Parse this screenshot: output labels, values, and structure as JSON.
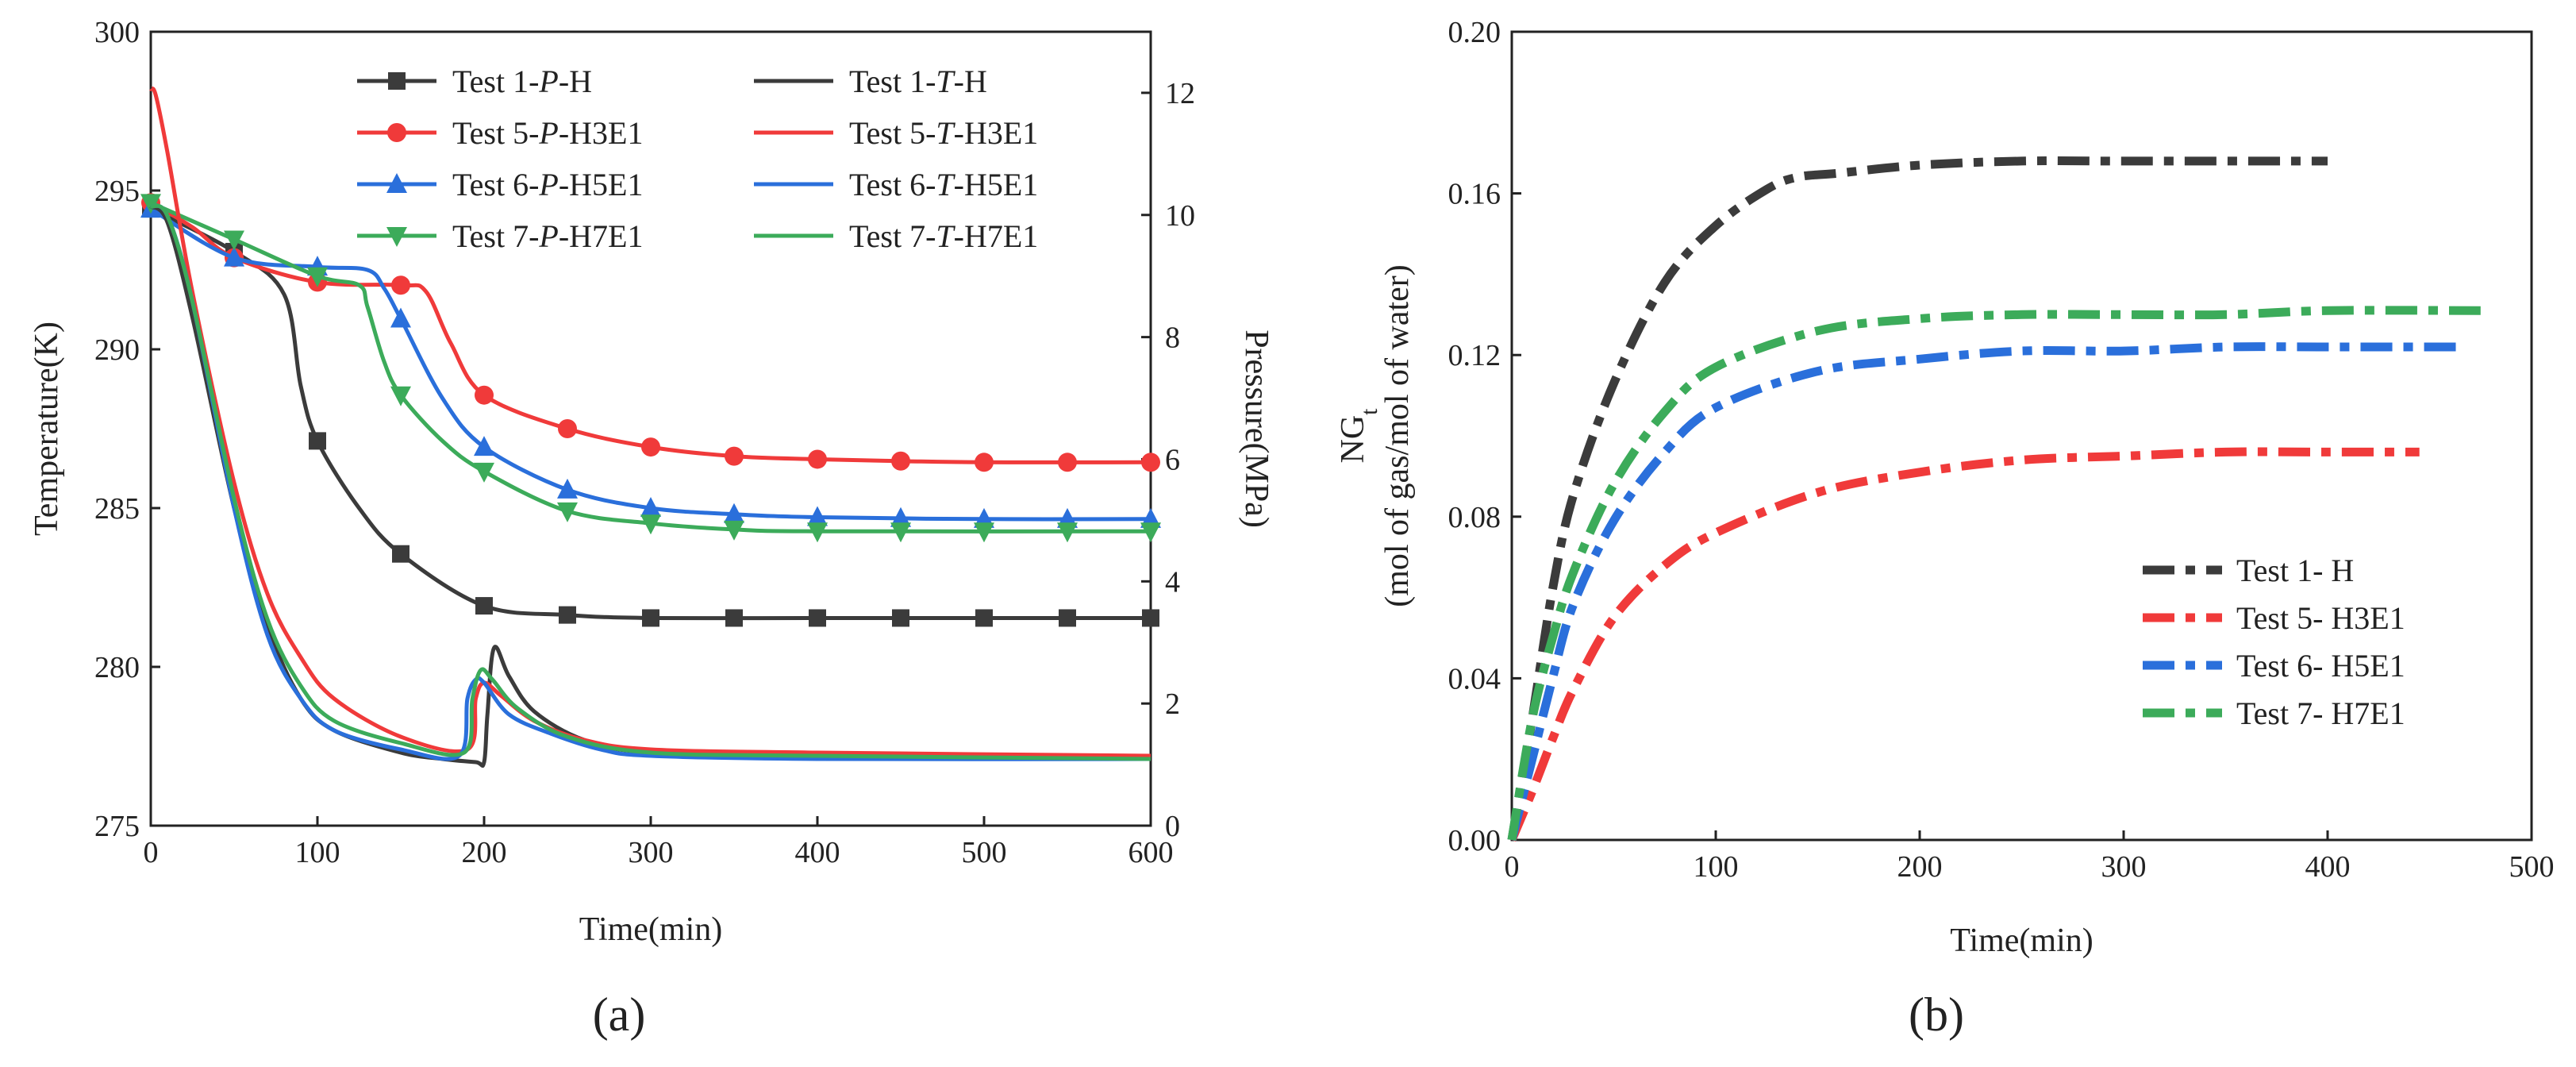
{
  "panel_labels": {
    "a": "(a)",
    "b": "(b)"
  },
  "colors": {
    "H": "#3b3b3b",
    "H3E1": "#f03a3a",
    "H5E1": "#2a6fdb",
    "H7E1": "#3cab5a"
  },
  "chart_data": [
    {
      "id": "a",
      "type": "line",
      "xlabel": "Time(min)",
      "ylabel": "Temperature(K)",
      "y2label": "Pressure(MPa)",
      "xlim": [
        0,
        600
      ],
      "ylim": [
        275,
        300
      ],
      "y2lim": [
        0,
        13
      ],
      "xticks": [
        0,
        100,
        200,
        300,
        400,
        500,
        600
      ],
      "yticks": [
        275,
        280,
        285,
        290,
        295,
        300
      ],
      "y2ticks": [
        0,
        2,
        4,
        6,
        8,
        10,
        12
      ],
      "legend_position": "top-right",
      "series": [
        {
          "name": "Test 1-P-H",
          "label_prefix": "Test 1-",
          "label_var": "P",
          "label_suffix": "-H",
          "color_key": "H",
          "marker": "square",
          "axis": "pressure",
          "x": [
            0,
            50,
            80,
            90,
            100,
            125,
            150,
            200,
            250,
            300,
            400,
            500,
            600
          ],
          "y": [
            10.1,
            9.4,
            8.7,
            7.2,
            6.3,
            5.2,
            4.45,
            3.6,
            3.45,
            3.4,
            3.4,
            3.4,
            3.4
          ],
          "marker_x": [
            0,
            50,
            100,
            150,
            200,
            250,
            300,
            350,
            400,
            450,
            500,
            550,
            600
          ]
        },
        {
          "name": "Test 5-P-H3E1",
          "label_prefix": "Test 5-",
          "label_var": "P",
          "label_suffix": "-H3E1",
          "color_key": "H3E1",
          "marker": "circle",
          "axis": "pressure",
          "x": [
            0,
            25,
            50,
            100,
            150,
            165,
            180,
            200,
            250,
            300,
            350,
            400,
            450,
            500,
            600
          ],
          "y": [
            10.2,
            9.8,
            9.3,
            8.9,
            8.85,
            8.75,
            7.9,
            7.05,
            6.5,
            6.2,
            6.05,
            6.0,
            5.97,
            5.95,
            5.95
          ],
          "marker_x": [
            0,
            50,
            100,
            150,
            200,
            250,
            300,
            350,
            400,
            450,
            500,
            550,
            600
          ]
        },
        {
          "name": "Test 6-P-H5E1",
          "label_prefix": "Test 6-",
          "label_var": "P",
          "label_suffix": "-H5E1",
          "color_key": "H5E1",
          "marker": "triangle-up",
          "axis": "pressure",
          "x": [
            0,
            50,
            100,
            130,
            140,
            150,
            175,
            200,
            250,
            300,
            350,
            400,
            500,
            600
          ],
          "y": [
            10.1,
            9.3,
            9.15,
            9.1,
            8.8,
            8.3,
            7.0,
            6.2,
            5.5,
            5.2,
            5.1,
            5.05,
            5.02,
            5.02
          ],
          "marker_x": [
            0,
            50,
            100,
            150,
            200,
            250,
            300,
            350,
            400,
            450,
            500,
            550,
            600
          ]
        },
        {
          "name": "Test 7-P-H7E1",
          "label_prefix": "Test 7-",
          "label_var": "P",
          "label_suffix": "-H7E1",
          "color_key": "H7E1",
          "marker": "triangle-down",
          "axis": "pressure",
          "x": [
            0,
            50,
            100,
            125,
            130,
            140,
            150,
            175,
            200,
            250,
            300,
            350,
            400,
            600
          ],
          "y": [
            10.2,
            9.6,
            9.0,
            8.85,
            8.5,
            7.6,
            7.05,
            6.3,
            5.8,
            5.15,
            4.95,
            4.85,
            4.82,
            4.82
          ],
          "marker_x": [
            0,
            50,
            100,
            150,
            200,
            250,
            300,
            350,
            400,
            450,
            500,
            550,
            600
          ]
        },
        {
          "name": "Test 1-T-H",
          "label_prefix": "Test 1-",
          "label_var": "T",
          "label_suffix": "-H",
          "color_key": "H",
          "marker": "none",
          "axis": "temperature",
          "x": [
            0,
            10,
            25,
            50,
            70,
            90,
            110,
            150,
            175,
            195,
            200,
            202,
            206,
            215,
            230,
            260,
            300,
            400,
            600
          ],
          "y": [
            294.5,
            294.0,
            291.0,
            285.0,
            281.3,
            279.0,
            278.0,
            277.3,
            277.1,
            277.0,
            277.0,
            278.5,
            280.6,
            279.7,
            278.6,
            277.7,
            277.3,
            277.2,
            277.2
          ]
        },
        {
          "name": "Test 5-T-H3E1",
          "label_prefix": "Test 5-",
          "label_var": "T",
          "label_suffix": "-H3E1",
          "color_key": "H3E1",
          "marker": "none",
          "axis": "temperature",
          "x": [
            0,
            3,
            10,
            25,
            50,
            70,
            90,
            110,
            150,
            190,
            195,
            200,
            210,
            230,
            260,
            300,
            400,
            600
          ],
          "y": [
            298.2,
            298.0,
            296.2,
            291.8,
            285.8,
            282.3,
            280.3,
            279.0,
            277.8,
            277.4,
            279.0,
            279.5,
            279.1,
            278.3,
            277.7,
            277.4,
            277.3,
            277.2
          ]
        },
        {
          "name": "Test 6-T-H5E1",
          "label_prefix": "Test 6-",
          "label_var": "T",
          "label_suffix": "-H5E1",
          "color_key": "H5E1",
          "marker": "none",
          "axis": "temperature",
          "x": [
            0,
            10,
            25,
            50,
            70,
            90,
            110,
            150,
            185,
            190,
            195,
            200,
            215,
            240,
            270,
            300,
            400,
            600
          ],
          "y": [
            294.5,
            294.2,
            291.5,
            285.0,
            281.0,
            279.0,
            278.0,
            277.4,
            277.2,
            279.0,
            279.6,
            279.5,
            278.5,
            277.9,
            277.4,
            277.2,
            277.1,
            277.1
          ]
        },
        {
          "name": "Test 7-T-H7E1",
          "label_prefix": "Test 7-",
          "label_var": "T",
          "label_suffix": "-H7E1",
          "color_key": "H7E1",
          "marker": "none",
          "axis": "temperature",
          "x": [
            0,
            10,
            25,
            50,
            70,
            90,
            110,
            150,
            188,
            193,
            198,
            205,
            220,
            250,
            300,
            400,
            600
          ],
          "y": [
            294.5,
            294.2,
            291.5,
            285.3,
            281.5,
            279.4,
            278.3,
            277.6,
            277.3,
            279.0,
            279.9,
            279.6,
            278.7,
            277.8,
            277.3,
            277.2,
            277.1
          ]
        }
      ]
    },
    {
      "id": "b",
      "type": "line",
      "xlabel": "Time(min)",
      "ylabel_main": "NG",
      "ylabel_sub": "t",
      "ylabel2": "(mol of gas/mol of water)",
      "xlim": [
        0,
        500
      ],
      "ylim": [
        0.0,
        0.2
      ],
      "xticks": [
        0,
        100,
        200,
        300,
        400,
        500
      ],
      "yticks": [
        "0.00",
        "0.04",
        "0.08",
        "0.12",
        "0.16",
        "0.20"
      ],
      "legend_position": "bottom-right",
      "line_style": "dash-dot",
      "series": [
        {
          "name": "Test 1- H",
          "color_key": "H",
          "x": [
            0,
            10,
            20,
            30,
            50,
            75,
            100,
            125,
            140,
            160,
            200,
            250,
            300,
            400
          ],
          "y": [
            0,
            0.03,
            0.062,
            0.085,
            0.113,
            0.138,
            0.152,
            0.161,
            0.164,
            0.165,
            0.167,
            0.168,
            0.168,
            0.168
          ]
        },
        {
          "name": "Test 5- H3E1",
          "color_key": "H3E1",
          "x": [
            0,
            10,
            20,
            30,
            50,
            75,
            100,
            150,
            200,
            250,
            300,
            350,
            400,
            445
          ],
          "y": [
            0,
            0.012,
            0.025,
            0.037,
            0.055,
            0.068,
            0.076,
            0.086,
            0.091,
            0.094,
            0.095,
            0.096,
            0.096,
            0.096
          ]
        },
        {
          "name": "Test 6- H5E1",
          "color_key": "H5E1",
          "x": [
            0,
            10,
            20,
            30,
            50,
            75,
            100,
            150,
            200,
            250,
            300,
            350,
            400,
            465
          ],
          "y": [
            0,
            0.02,
            0.04,
            0.058,
            0.079,
            0.096,
            0.107,
            0.116,
            0.119,
            0.121,
            0.121,
            0.122,
            0.122,
            0.122
          ]
        },
        {
          "name": "Test 7- H7E1",
          "color_key": "H7E1",
          "x": [
            0,
            10,
            20,
            30,
            50,
            75,
            100,
            150,
            200,
            250,
            300,
            350,
            400,
            475
          ],
          "y": [
            0,
            0.03,
            0.05,
            0.066,
            0.088,
            0.106,
            0.117,
            0.126,
            0.129,
            0.13,
            0.13,
            0.13,
            0.131,
            0.131
          ]
        }
      ]
    }
  ]
}
